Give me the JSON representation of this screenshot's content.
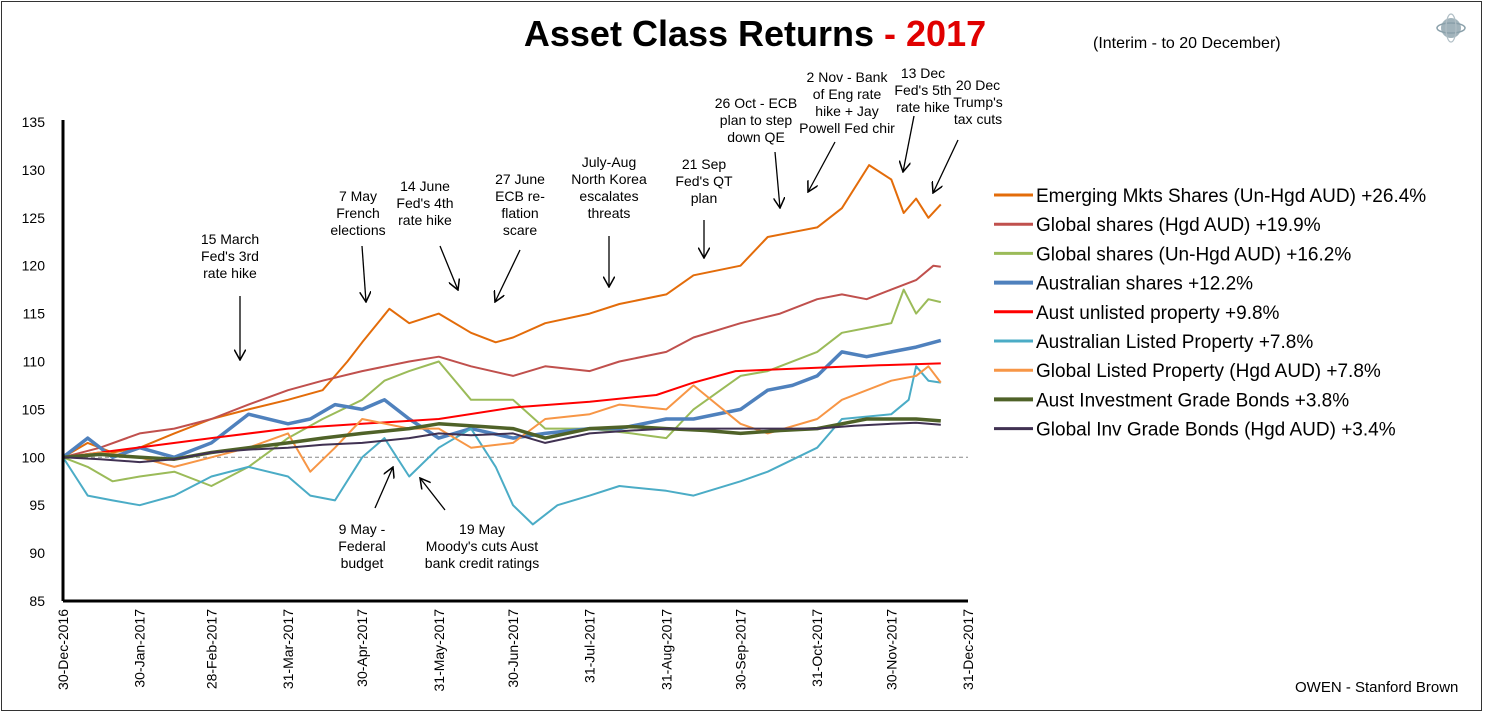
{
  "chart_data": {
    "type": "line",
    "title": "Asset Class Returns",
    "title_year": "- 2017",
    "subtitle": "(Interim - to 20 December)",
    "source": "OWEN - Stanford Brown",
    "x_unit": "days since 30-Dec-2016",
    "xlim": [
      0,
      366
    ],
    "ylim": [
      85,
      135
    ],
    "yticks": [
      85,
      90,
      95,
      100,
      105,
      110,
      115,
      120,
      125,
      130,
      135
    ],
    "xticks": [
      {
        "day": 0,
        "label": "30-Dec-2016"
      },
      {
        "day": 31,
        "label": "30-Jan-2017"
      },
      {
        "day": 60,
        "label": "28-Feb-2017"
      },
      {
        "day": 91,
        "label": "31-Mar-2017"
      },
      {
        "day": 121,
        "label": "30-Apr-2017"
      },
      {
        "day": 152,
        "label": "31-May-2017"
      },
      {
        "day": 182,
        "label": "30-Jun-2017"
      },
      {
        "day": 213,
        "label": "31-Jul-2017"
      },
      {
        "day": 244,
        "label": "31-Aug-2017"
      },
      {
        "day": 274,
        "label": "30-Sep-2017"
      },
      {
        "day": 305,
        "label": "31-Oct-2017"
      },
      {
        "day": 335,
        "label": "30-Nov-2017"
      },
      {
        "day": 366,
        "label": "31-Dec-2017"
      }
    ],
    "baseline": 100,
    "legend_position": "right",
    "series": [
      {
        "name": "Emerging Mkts Shares (Un-Hgd AUD) +26.4%",
        "color": "#e36c0a",
        "width": 2,
        "points": [
          [
            0,
            100
          ],
          [
            10,
            101.5
          ],
          [
            20,
            100.5
          ],
          [
            31,
            101
          ],
          [
            45,
            102.5
          ],
          [
            60,
            104
          ],
          [
            75,
            105
          ],
          [
            91,
            106
          ],
          [
            105,
            107
          ],
          [
            115,
            110
          ],
          [
            121,
            112
          ],
          [
            132,
            115.5
          ],
          [
            140,
            114
          ],
          [
            152,
            115
          ],
          [
            165,
            113
          ],
          [
            175,
            112
          ],
          [
            182,
            112.5
          ],
          [
            195,
            114
          ],
          [
            213,
            115
          ],
          [
            225,
            116
          ],
          [
            244,
            117
          ],
          [
            255,
            119
          ],
          [
            274,
            120
          ],
          [
            285,
            123
          ],
          [
            295,
            123.5
          ],
          [
            305,
            124
          ],
          [
            315,
            126
          ],
          [
            326,
            130.5
          ],
          [
            335,
            129
          ],
          [
            340,
            125.5
          ],
          [
            345,
            127
          ],
          [
            350,
            125
          ],
          [
            355,
            126.4
          ]
        ]
      },
      {
        "name": "Global shares (Hgd AUD) +19.9%",
        "color": "#c0504d",
        "width": 2,
        "points": [
          [
            0,
            100
          ],
          [
            15,
            101
          ],
          [
            31,
            102.5
          ],
          [
            45,
            103
          ],
          [
            60,
            104
          ],
          [
            75,
            105.5
          ],
          [
            91,
            107
          ],
          [
            105,
            108
          ],
          [
            121,
            109
          ],
          [
            140,
            110
          ],
          [
            152,
            110.5
          ],
          [
            165,
            109.5
          ],
          [
            182,
            108.5
          ],
          [
            195,
            109.5
          ],
          [
            213,
            109
          ],
          [
            225,
            110
          ],
          [
            244,
            111
          ],
          [
            255,
            112.5
          ],
          [
            274,
            114
          ],
          [
            290,
            115
          ],
          [
            305,
            116.5
          ],
          [
            315,
            117
          ],
          [
            325,
            116.5
          ],
          [
            335,
            117.5
          ],
          [
            345,
            118.5
          ],
          [
            352,
            120
          ],
          [
            355,
            119.9
          ]
        ]
      },
      {
        "name": "Global shares (Un-Hgd AUD) +16.2%",
        "color": "#9bbb59",
        "width": 2,
        "points": [
          [
            0,
            100
          ],
          [
            10,
            99
          ],
          [
            20,
            97.5
          ],
          [
            31,
            98
          ],
          [
            45,
            98.5
          ],
          [
            60,
            97
          ],
          [
            75,
            99
          ],
          [
            91,
            102
          ],
          [
            105,
            104
          ],
          [
            121,
            106
          ],
          [
            130,
            108
          ],
          [
            140,
            109
          ],
          [
            152,
            110
          ],
          [
            165,
            106
          ],
          [
            182,
            106
          ],
          [
            195,
            103
          ],
          [
            213,
            103
          ],
          [
            230,
            102.5
          ],
          [
            244,
            102
          ],
          [
            255,
            105
          ],
          [
            274,
            108.5
          ],
          [
            285,
            109
          ],
          [
            305,
            111
          ],
          [
            315,
            113
          ],
          [
            325,
            113.5
          ],
          [
            335,
            114
          ],
          [
            340,
            117.5
          ],
          [
            345,
            115
          ],
          [
            350,
            116.5
          ],
          [
            355,
            116.2
          ]
        ]
      },
      {
        "name": "Australian shares +12.2%",
        "color": "#4f81bd",
        "width": 3.5,
        "points": [
          [
            0,
            100
          ],
          [
            10,
            102
          ],
          [
            20,
            100
          ],
          [
            31,
            101
          ],
          [
            45,
            100
          ],
          [
            60,
            101.5
          ],
          [
            75,
            104.5
          ],
          [
            91,
            103.5
          ],
          [
            100,
            104
          ],
          [
            110,
            105.5
          ],
          [
            121,
            105
          ],
          [
            130,
            106
          ],
          [
            140,
            104
          ],
          [
            152,
            102
          ],
          [
            165,
            103
          ],
          [
            182,
            102
          ],
          [
            195,
            102.5
          ],
          [
            213,
            103
          ],
          [
            225,
            103
          ],
          [
            244,
            104
          ],
          [
            255,
            104
          ],
          [
            274,
            105
          ],
          [
            285,
            107
          ],
          [
            295,
            107.5
          ],
          [
            305,
            108.5
          ],
          [
            315,
            111
          ],
          [
            325,
            110.5
          ],
          [
            335,
            111
          ],
          [
            345,
            111.5
          ],
          [
            355,
            112.2
          ]
        ]
      },
      {
        "name": "Aust unlisted property +9.8%",
        "color": "#ff0000",
        "width": 2,
        "points": [
          [
            0,
            100
          ],
          [
            30,
            101
          ],
          [
            60,
            102
          ],
          [
            91,
            103
          ],
          [
            121,
            103.5
          ],
          [
            152,
            104
          ],
          [
            182,
            105.2
          ],
          [
            213,
            105.8
          ],
          [
            240,
            106.5
          ],
          [
            255,
            107.8
          ],
          [
            272,
            109
          ],
          [
            300,
            109.3
          ],
          [
            330,
            109.6
          ],
          [
            355,
            109.8
          ]
        ]
      },
      {
        "name": "Australian Listed Property +7.8%",
        "color": "#4bacc6",
        "width": 2,
        "points": [
          [
            0,
            100
          ],
          [
            5,
            98
          ],
          [
            10,
            96
          ],
          [
            20,
            95.5
          ],
          [
            31,
            95
          ],
          [
            45,
            96
          ],
          [
            60,
            98
          ],
          [
            75,
            99
          ],
          [
            91,
            98
          ],
          [
            100,
            96
          ],
          [
            110,
            95.5
          ],
          [
            121,
            100
          ],
          [
            130,
            102
          ],
          [
            140,
            98
          ],
          [
            152,
            101
          ],
          [
            165,
            103
          ],
          [
            175,
            99
          ],
          [
            182,
            95
          ],
          [
            190,
            93
          ],
          [
            200,
            95
          ],
          [
            213,
            96
          ],
          [
            225,
            97
          ],
          [
            244,
            96.5
          ],
          [
            255,
            96
          ],
          [
            274,
            97.5
          ],
          [
            285,
            98.5
          ],
          [
            305,
            101
          ],
          [
            315,
            104
          ],
          [
            335,
            104.5
          ],
          [
            342,
            106
          ],
          [
            345,
            109.5
          ],
          [
            350,
            108
          ],
          [
            355,
            107.8
          ]
        ]
      },
      {
        "name": "Global Listed Property (Hgd AUD) +7.8%",
        "color": "#f79646",
        "width": 2,
        "points": [
          [
            0,
            100
          ],
          [
            15,
            100.5
          ],
          [
            31,
            100
          ],
          [
            45,
            99
          ],
          [
            60,
            100
          ],
          [
            75,
            101
          ],
          [
            91,
            102.5
          ],
          [
            100,
            98.5
          ],
          [
            110,
            101
          ],
          [
            121,
            104
          ],
          [
            140,
            103
          ],
          [
            152,
            103
          ],
          [
            165,
            101
          ],
          [
            182,
            101.5
          ],
          [
            195,
            104
          ],
          [
            213,
            104.5
          ],
          [
            225,
            105.5
          ],
          [
            244,
            105
          ],
          [
            255,
            107.5
          ],
          [
            274,
            103.5
          ],
          [
            285,
            102.5
          ],
          [
            305,
            104
          ],
          [
            315,
            106
          ],
          [
            335,
            108
          ],
          [
            345,
            108.5
          ],
          [
            350,
            109.5
          ],
          [
            355,
            107.8
          ]
        ]
      },
      {
        "name": "Aust Investment Grade Bonds +3.8%",
        "color": "#4f6228",
        "width": 3.5,
        "points": [
          [
            0,
            100
          ],
          [
            15,
            100.3
          ],
          [
            31,
            100
          ],
          [
            45,
            99.8
          ],
          [
            60,
            100.5
          ],
          [
            75,
            101
          ],
          [
            91,
            101.5
          ],
          [
            105,
            102
          ],
          [
            121,
            102.5
          ],
          [
            140,
            103
          ],
          [
            152,
            103.5
          ],
          [
            170,
            103.2
          ],
          [
            182,
            103
          ],
          [
            195,
            102
          ],
          [
            213,
            103
          ],
          [
            230,
            103.2
          ],
          [
            244,
            103
          ],
          [
            260,
            102.8
          ],
          [
            274,
            102.5
          ],
          [
            290,
            102.8
          ],
          [
            305,
            103
          ],
          [
            315,
            103.5
          ],
          [
            325,
            104
          ],
          [
            335,
            104
          ],
          [
            345,
            104
          ],
          [
            355,
            103.8
          ]
        ]
      },
      {
        "name": "Global Inv Grade Bonds (Hgd AUD) +3.4%",
        "color": "#403152",
        "width": 2,
        "points": [
          [
            0,
            100
          ],
          [
            15,
            99.8
          ],
          [
            31,
            99.5
          ],
          [
            45,
            99.8
          ],
          [
            60,
            100.5
          ],
          [
            75,
            100.8
          ],
          [
            91,
            101
          ],
          [
            105,
            101.3
          ],
          [
            121,
            101.5
          ],
          [
            140,
            102
          ],
          [
            152,
            102.5
          ],
          [
            165,
            102.3
          ],
          [
            182,
            102.5
          ],
          [
            195,
            101.5
          ],
          [
            213,
            102.5
          ],
          [
            230,
            102.8
          ],
          [
            244,
            103
          ],
          [
            260,
            103
          ],
          [
            274,
            103
          ],
          [
            290,
            103
          ],
          [
            305,
            103
          ],
          [
            320,
            103.3
          ],
          [
            335,
            103.5
          ],
          [
            345,
            103.6
          ],
          [
            355,
            103.4
          ]
        ]
      }
    ],
    "annotations": [
      {
        "lines": [
          "15 March",
          "Fed's 3rd",
          "rate hike"
        ]
      },
      {
        "lines": [
          "7 May",
          "French",
          "elections"
        ]
      },
      {
        "lines": [
          "14 June",
          "Fed's 4th",
          "rate hike"
        ]
      },
      {
        "lines": [
          "27 June",
          "ECB re-",
          "flation",
          "scare"
        ]
      },
      {
        "lines": [
          "July-Aug",
          "North Korea",
          "escalates",
          "threats"
        ]
      },
      {
        "lines": [
          "21 Sep",
          "Fed's QT",
          "plan"
        ]
      },
      {
        "lines": [
          "26 Oct - ECB",
          "plan to step",
          "down QE"
        ]
      },
      {
        "lines": [
          "2 Nov - Bank",
          "of Eng rate",
          "hike + Jay",
          "Powell Fed chir"
        ]
      },
      {
        "lines": [
          "13 Dec",
          "Fed's 5th",
          "rate hike"
        ]
      },
      {
        "lines": [
          "20 Dec",
          "Trump's",
          "tax cuts"
        ]
      },
      {
        "lines": [
          "9 May -",
          "Federal",
          "budget"
        ]
      },
      {
        "lines": [
          "19 May",
          "Moody's cuts Aust",
          "bank credit ratings"
        ]
      }
    ]
  }
}
